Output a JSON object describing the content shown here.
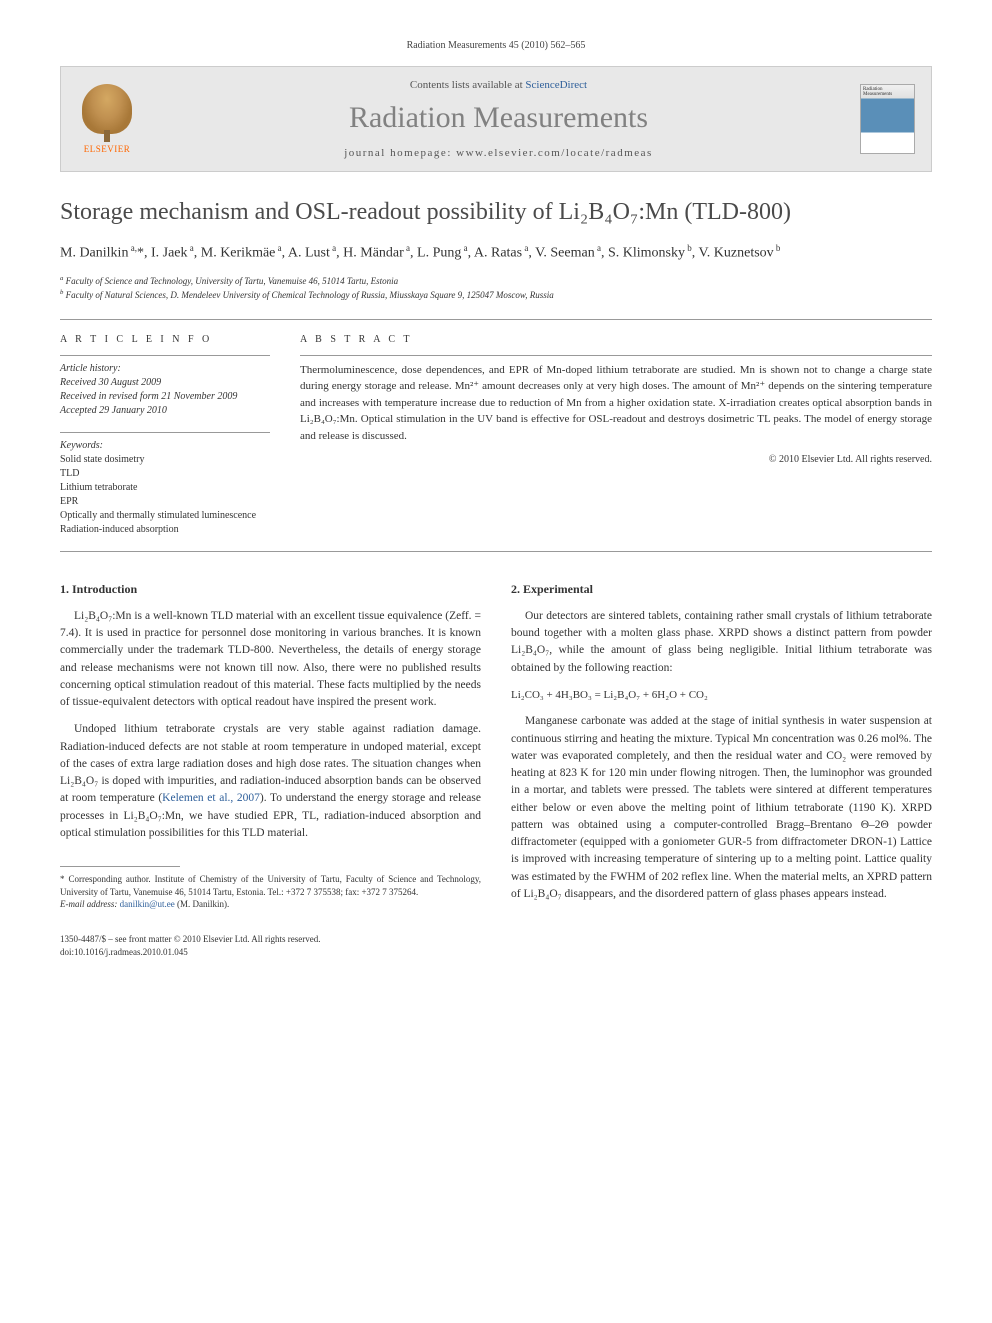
{
  "header": {
    "citation": "Radiation Measurements 45 (2010) 562–565"
  },
  "masthead": {
    "elsevier": "ELSEVIER",
    "contents_prefix": "Contents lists available at ",
    "contents_link": "ScienceDirect",
    "journal": "Radiation Measurements",
    "homepage_prefix": "journal homepage: ",
    "homepage": "www.elsevier.com/locate/radmeas",
    "cover_label": "Radiation Measurements"
  },
  "title": "Storage mechanism and OSL-readout possibility of Li₂B₄O₇:Mn (TLD-800)",
  "authors_html": "M. Danilkin <sup>a,</sup>*, I. Jaek <sup>a</sup>, M. Kerikmäe <sup>a</sup>, A. Lust <sup>a</sup>, H. Mändar <sup>a</sup>, L. Pung <sup>a</sup>, A. Ratas <sup>a</sup>, V. Seeman <sup>a</sup>, S. Klimonsky <sup>b</sup>, V. Kuznetsov <sup>b</sup>",
  "affiliations": {
    "a": "Faculty of Science and Technology, University of Tartu, Vanemuise 46, 51014 Tartu, Estonia",
    "b": "Faculty of Natural Sciences, D. Mendeleev University of Chemical Technology of Russia, Miusskaya Square 9, 125047 Moscow, Russia"
  },
  "info": {
    "label": "A R T I C L E   I N F O",
    "history_label": "Article history:",
    "received": "Received 30 August 2009",
    "revised": "Received in revised form 21 November 2009",
    "accepted": "Accepted 29 January 2010",
    "keywords_label": "Keywords:",
    "keywords": [
      "Solid state dosimetry",
      "TLD",
      "Lithium tetraborate",
      "EPR",
      "Optically and thermally stimulated luminescence",
      "Radiation-induced absorption"
    ]
  },
  "abstract": {
    "label": "A B S T R A C T",
    "text": "Thermoluminescence, dose dependences, and EPR of Mn-doped lithium tetraborate are studied. Mn is shown not to change a charge state during energy storage and release. Mn²⁺ amount decreases only at very high doses. The amount of Mn²⁺ depends on the sintering temperature and increases with temperature increase due to reduction of Mn from a higher oxidation state. X-irradiation creates optical absorption bands in Li₂B₄O₇:Mn. Optical stimulation in the UV band is effective for OSL-readout and destroys dosimetric TL peaks. The model of energy storage and release is discussed.",
    "copyright": "© 2010 Elsevier Ltd. All rights reserved."
  },
  "sections": {
    "intro_heading": "1. Introduction",
    "intro_p1": "Li₂B₄O₇:Mn is a well-known TLD material with an excellent tissue equivalence (Zeff. = 7.4). It is used in practice for personnel dose monitoring in various branches. It is known commercially under the trademark TLD-800. Nevertheless, the details of energy storage and release mechanisms were not known till now. Also, there were no published results concerning optical stimulation readout of this material. These facts multiplied by the needs of tissue-equivalent detectors with optical readout have inspired the present work.",
    "intro_p2_a": "Undoped lithium tetraborate crystals are very stable against radiation damage. Radiation-induced defects are not stable at room temperature in undoped material, except of the cases of extra large radiation doses and high dose rates. The situation changes when Li₂B₄O₇ is doped with impurities, and radiation-induced absorption bands can be observed at room temperature (",
    "intro_p2_link": "Kelemen et al., 2007",
    "intro_p2_b": "). To understand the energy storage and release processes in Li₂B₄O₇:Mn, we have studied EPR, TL, radiation-induced absorption and optical stimulation possibilities for this TLD material.",
    "exp_heading": "2. Experimental",
    "exp_p1": "Our detectors are sintered tablets, containing rather small crystals of lithium tetraborate bound together with a molten glass phase. XRPD shows a distinct pattern from powder Li₂B₄O₇, while the amount of glass being negligible. Initial lithium tetraborate was obtained by the following reaction:",
    "reaction": "Li₂CO₃ + 4H₃BO₃ = Li₂B₄O₇ + 6H₂O + CO₂",
    "exp_p2": "Manganese carbonate was added at the stage of initial synthesis in water suspension at continuous stirring and heating the mixture. Typical Mn concentration was 0.26 mol%. The water was evaporated completely, and then the residual water and CO₂ were removed by heating at 823 K for 120 min under flowing nitrogen. Then, the luminophor was grounded in a mortar, and tablets were pressed. The tablets were sintered at different temperatures either below or even above the melting point of lithium tetraborate (1190 K). XRPD pattern was obtained using a computer-controlled Bragg–Brentano Θ–2Θ powder diffractometer (equipped with a goniometer GUR-5 from diffractometer DRON-1) Lattice is improved with increasing temperature of sintering up to a melting point. Lattice quality was estimated by the FWHM of 202 reflex line. When the material melts, an XPRD pattern of Li₂B₄O₇ disappears, and the disordered pattern of glass phases appears instead."
  },
  "footnotes": {
    "corr": "* Corresponding author. Institute of Chemistry of the University of Tartu, Faculty of Science and Technology, University of Tartu, Vanemuise 46, 51014 Tartu, Estonia. Tel.: +372 7 375538; fax: +372 7 375264.",
    "email_label": "E-mail address: ",
    "email": "danilkin@ut.ee",
    "email_suffix": " (M. Danilkin)."
  },
  "footer": {
    "line1": "1350-4487/$ – see front matter © 2010 Elsevier Ltd. All rights reserved.",
    "line2": "doi:10.1016/j.radmeas.2010.01.045"
  },
  "colors": {
    "text": "#333333",
    "link": "#2e5f9a",
    "journal_gray": "#818181",
    "elsevier_orange": "#ff6600",
    "masthead_bg": "#e8e8e8",
    "rule": "#999999"
  },
  "typography": {
    "title_fontsize": 24,
    "journal_fontsize": 30,
    "body_fontsize": 11.5,
    "small_fontsize": 10,
    "footnote_fontsize": 9
  }
}
